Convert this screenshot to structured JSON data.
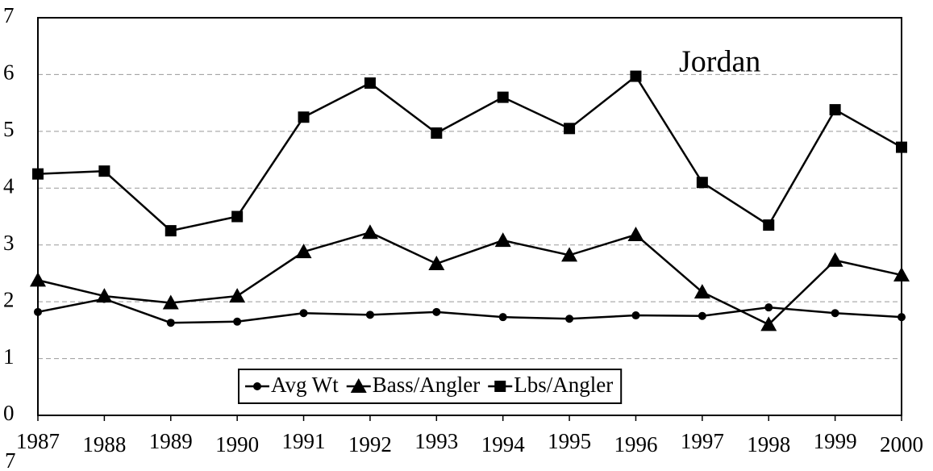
{
  "chart_data": {
    "type": "line",
    "annotation": "Jordan",
    "footer_text": "7",
    "categories": [
      "1987",
      "1988",
      "1989",
      "1990",
      "1991",
      "1992",
      "1993",
      "1994",
      "1995",
      "1996",
      "1997",
      "1998",
      "1999",
      "2000"
    ],
    "series": [
      {
        "name": "Avg Wt",
        "color": "#000000",
        "marker": "circle",
        "values": [
          1.82,
          2.05,
          1.63,
          1.65,
          1.8,
          1.77,
          1.82,
          1.73,
          1.7,
          1.76,
          1.75,
          1.9,
          1.8,
          1.73
        ]
      },
      {
        "name": "Bass/Angler",
        "color": "#000000",
        "marker": "triangle",
        "values": [
          2.38,
          2.1,
          1.98,
          2.1,
          2.88,
          3.22,
          2.67,
          3.08,
          2.82,
          3.18,
          2.17,
          1.6,
          2.73,
          2.47
        ]
      },
      {
        "name": "Lbs/Angler",
        "color": "#000000",
        "marker": "square",
        "values": [
          4.25,
          4.3,
          3.25,
          3.5,
          5.25,
          5.85,
          4.97,
          5.6,
          5.05,
          5.97,
          4.1,
          3.35,
          5.38,
          4.72
        ]
      }
    ],
    "ylim": [
      0,
      7
    ],
    "yticks": [
      0,
      1,
      2,
      3,
      4,
      5,
      6,
      7
    ],
    "grid": true,
    "legend": "bottom"
  }
}
